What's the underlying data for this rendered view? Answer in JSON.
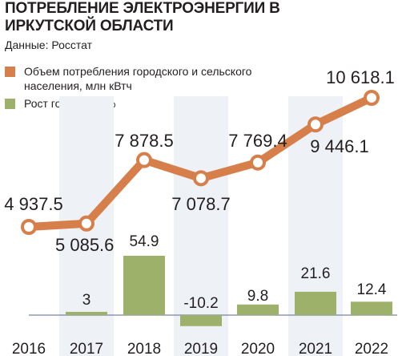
{
  "title": "ПОТРЕБЛЕНИЕ ЭЛЕКТРОЭНЕРГИИ В ИРКУТСКОЙ ОБЛАСТИ",
  "source": "Данные:  Росстат",
  "legend": [
    {
      "label": "Объем потребления городского и сельского населения, млн кВтч",
      "color": "#d67f4b"
    },
    {
      "label": "Рост год к году, %",
      "color": "#9eb16b"
    }
  ],
  "colors": {
    "line": "#d67f4b",
    "bar": "#9eb16b",
    "column_bg": "#eef1f6",
    "text": "#231f20"
  },
  "chart_data": {
    "type": "line",
    "x": [
      "2016",
      "2017",
      "2018",
      "2019",
      "2020",
      "2021",
      "2022"
    ],
    "series": [
      {
        "name": "Объем потребления городского и сельского населения, млн кВтч",
        "type": "line",
        "values": [
          4937.5,
          5085.6,
          7878.5,
          7078.7,
          7769.4,
          9446.1,
          10618.1
        ],
        "labels": [
          "4 937.5",
          "5 085.6",
          "7 878.5",
          "7 078.7",
          "7 769.4",
          "9 446.1",
          "10 618.1"
        ]
      },
      {
        "name": "Рост год к году, %",
        "type": "bar",
        "values": [
          null,
          3,
          54.9,
          -10.2,
          9.8,
          21.6,
          12.4
        ],
        "labels": [
          "",
          "3",
          "54.9",
          "-10.2",
          "9.8",
          "21.6",
          "12.4"
        ]
      }
    ],
    "grid": false,
    "legend_position": "top-left"
  }
}
